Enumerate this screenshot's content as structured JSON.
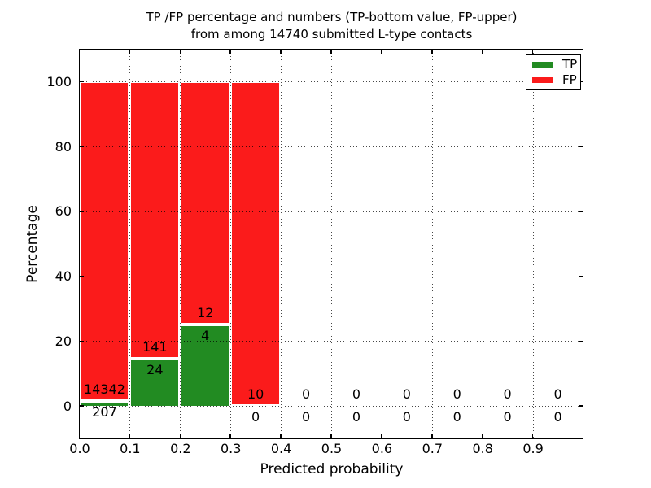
{
  "chart_data": {
    "type": "bar",
    "stacked": true,
    "title": "TP /FP percentage and numbers (TP-bottom value, FP-upper)",
    "subtitle": "from among 14740 submitted L-type contacts",
    "xlabel": "Predicted probability",
    "ylabel": "Percentage",
    "total_submitted_contacts": 14740,
    "xlim": [
      0.0,
      1.0
    ],
    "ylim": [
      -10,
      110
    ],
    "grid": true,
    "legend_position": "upper right",
    "x_ticks": [
      {
        "value": 0.0,
        "label": "0.0"
      },
      {
        "value": 0.1,
        "label": "0.1"
      },
      {
        "value": 0.2,
        "label": "0.2"
      },
      {
        "value": 0.3,
        "label": "0.3"
      },
      {
        "value": 0.4,
        "label": "0.4"
      },
      {
        "value": 0.5,
        "label": "0.5"
      },
      {
        "value": 0.6,
        "label": "0.6"
      },
      {
        "value": 0.7,
        "label": "0.7"
      },
      {
        "value": 0.8,
        "label": "0.8"
      },
      {
        "value": 0.9,
        "label": "0.9"
      }
    ],
    "y_ticks": [
      {
        "value": 0,
        "label": "0"
      },
      {
        "value": 20,
        "label": "20"
      },
      {
        "value": 40,
        "label": "40"
      },
      {
        "value": 60,
        "label": "60"
      },
      {
        "value": 80,
        "label": "80"
      },
      {
        "value": 100,
        "label": "100"
      }
    ],
    "bins": [
      {
        "range": "0.0-0.1",
        "tp_count": 207,
        "fp_count": 14342,
        "tp_pct": 1.42,
        "fp_pct": 98.58
      },
      {
        "range": "0.1-0.2",
        "tp_count": 24,
        "fp_count": 141,
        "tp_pct": 14.55,
        "fp_pct": 85.45
      },
      {
        "range": "0.2-0.3",
        "tp_count": 4,
        "fp_count": 12,
        "tp_pct": 25.0,
        "fp_pct": 75.0
      },
      {
        "range": "0.3-0.4",
        "tp_count": 0,
        "fp_count": 10,
        "tp_pct": 0,
        "fp_pct": 100.0
      },
      {
        "range": "0.4-0.5",
        "tp_count": 0,
        "fp_count": 0,
        "tp_pct": 0,
        "fp_pct": 0
      },
      {
        "range": "0.5-0.6",
        "tp_count": 0,
        "fp_count": 0,
        "tp_pct": 0,
        "fp_pct": 0
      },
      {
        "range": "0.6-0.7",
        "tp_count": 0,
        "fp_count": 0,
        "tp_pct": 0,
        "fp_pct": 0
      },
      {
        "range": "0.7-0.8",
        "tp_count": 0,
        "fp_count": 0,
        "tp_pct": 0,
        "fp_pct": 0
      },
      {
        "range": "0.8-0.9",
        "tp_count": 0,
        "fp_count": 0,
        "tp_pct": 0,
        "fp_pct": 0
      },
      {
        "range": "0.9-1.0",
        "tp_count": 0,
        "fp_count": 0,
        "tp_pct": 0,
        "fp_pct": 0
      }
    ],
    "legend": [
      {
        "label": "TP",
        "color": "#228B22"
      },
      {
        "label": "FP",
        "color": "#FB1B1B"
      }
    ],
    "colors": {
      "tp": "#228B22",
      "fp": "#FB1B1B",
      "grid": "#000000",
      "background": "#FFFFFF"
    }
  }
}
